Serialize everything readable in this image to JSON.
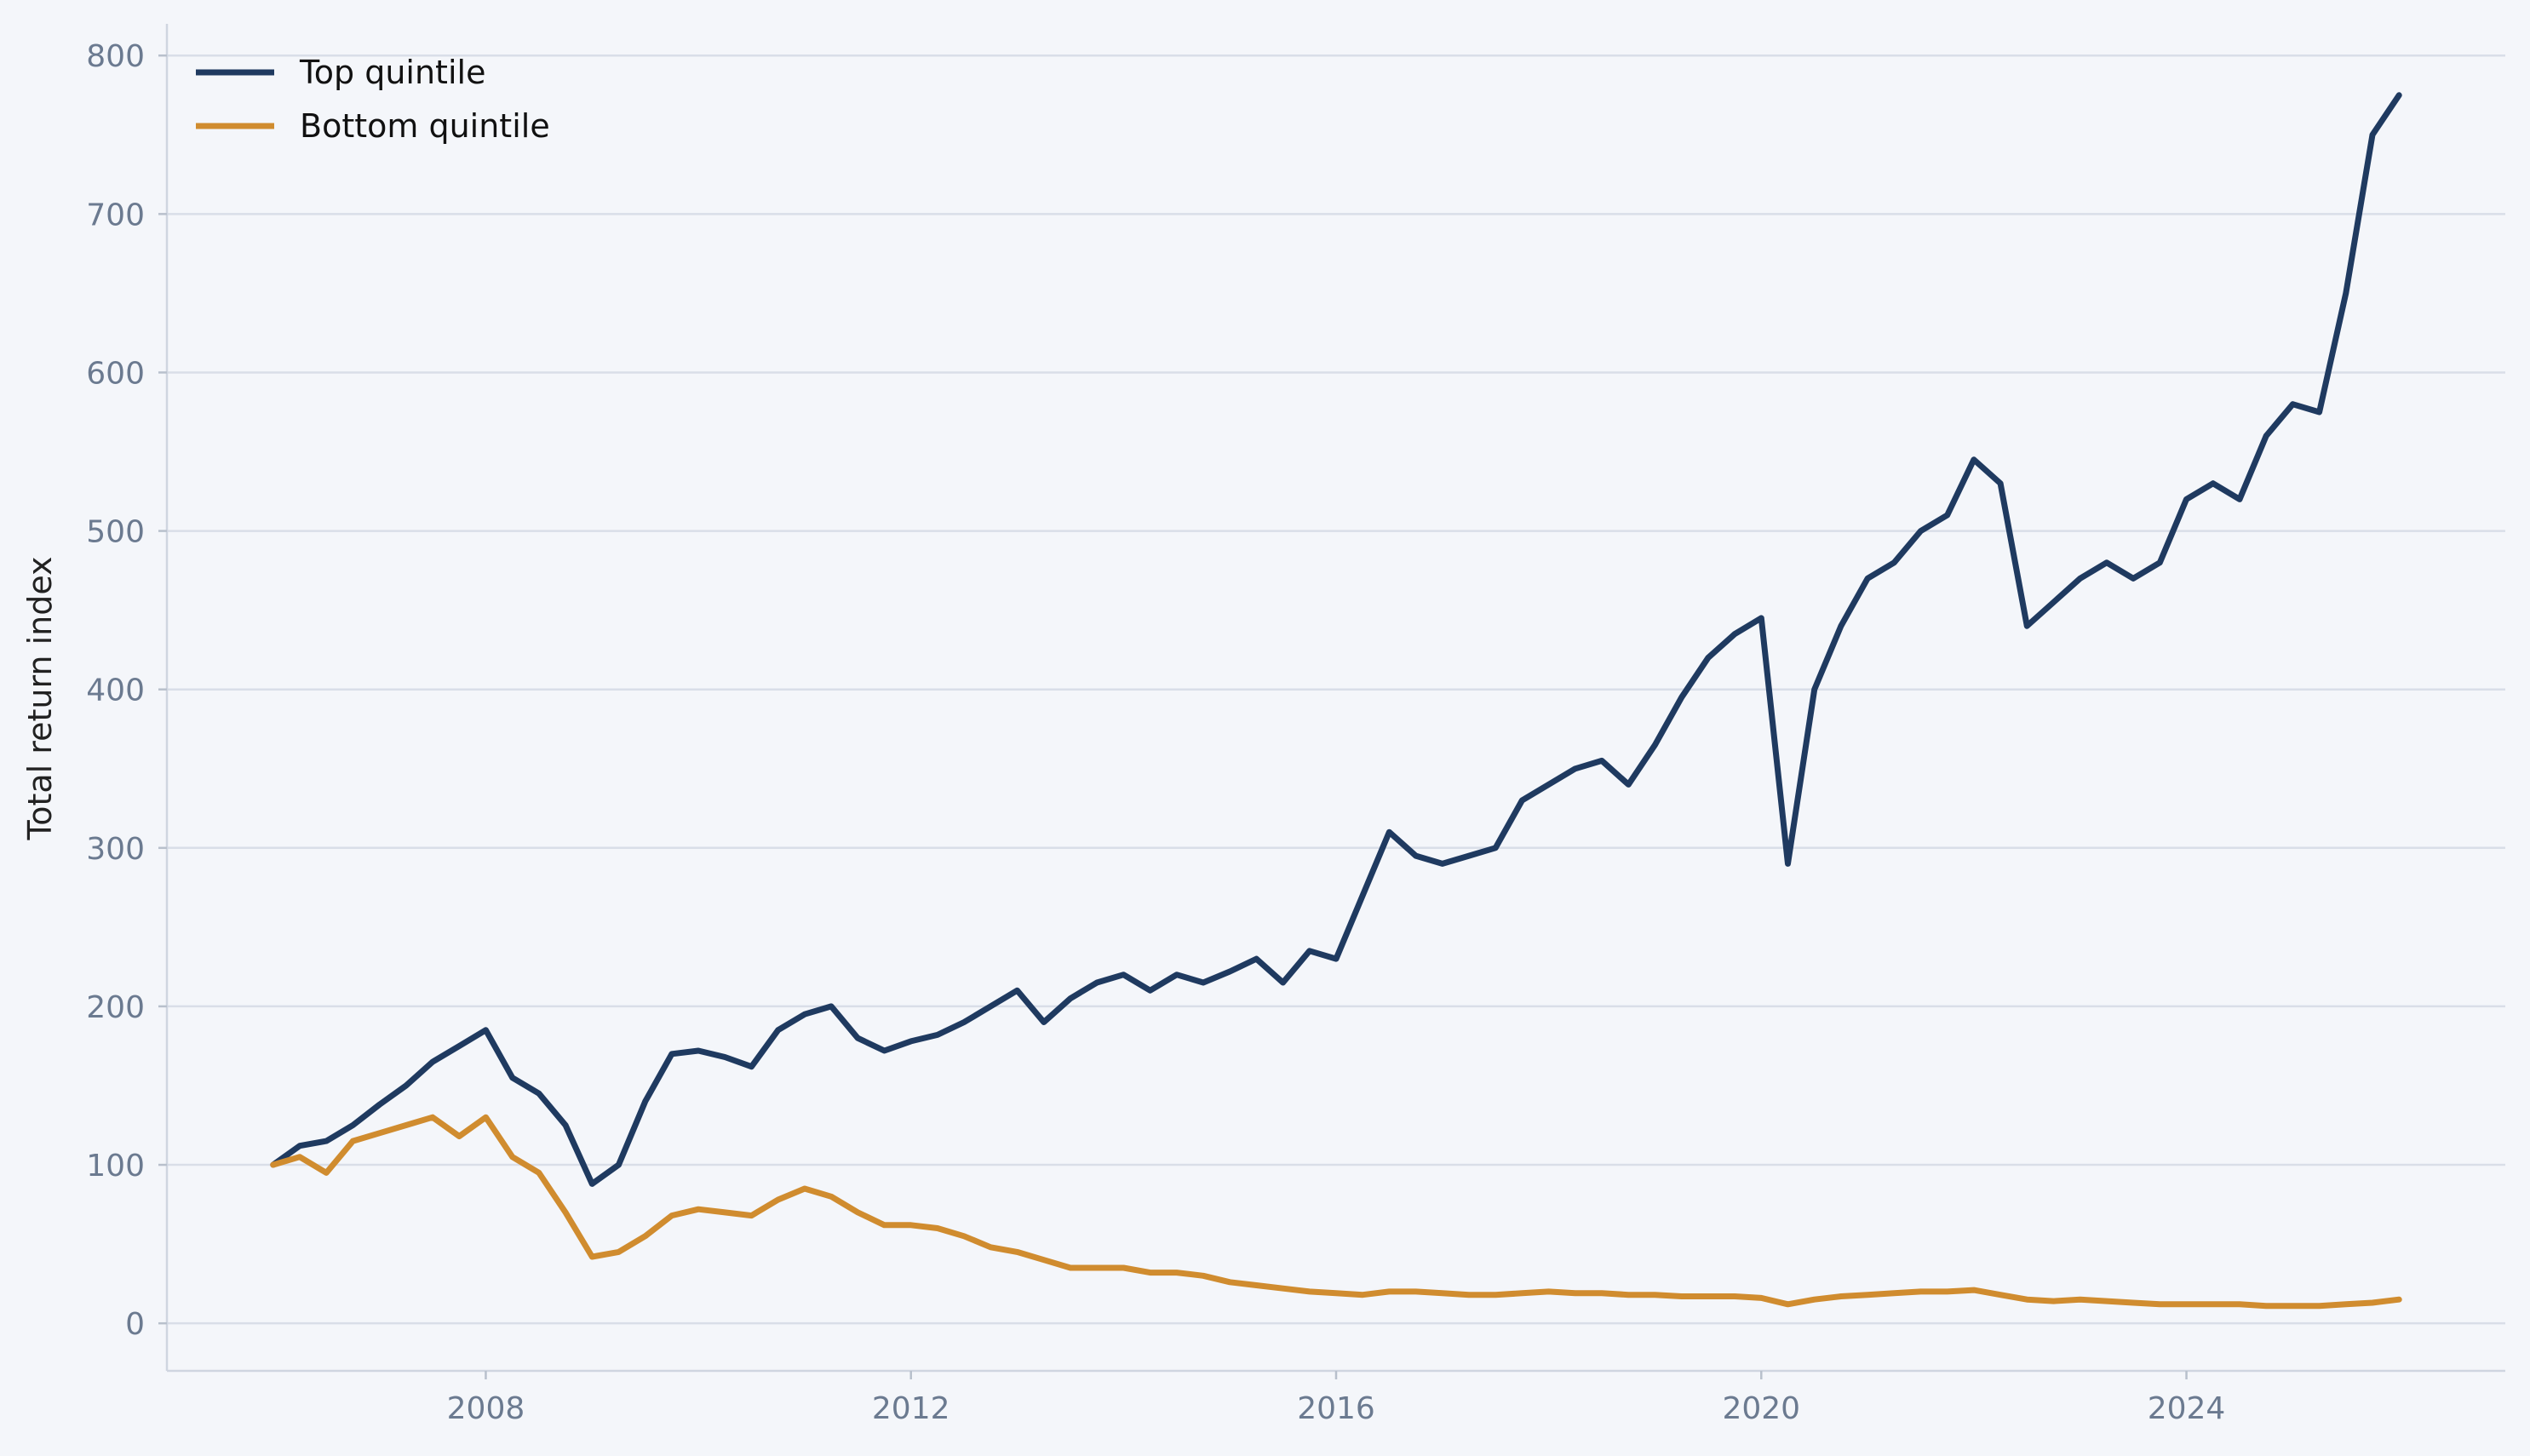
{
  "chart_data": {
    "type": "line",
    "title": "",
    "xlabel": "",
    "ylabel": "Total return index",
    "x_ticks": [
      "2008",
      "2012",
      "2016",
      "2020",
      "2024"
    ],
    "y_ticks": [
      "0",
      "100",
      "200",
      "300",
      "400",
      "500",
      "600",
      "700",
      "800"
    ],
    "xlim": [
      "2005-01",
      "2027-01"
    ],
    "ylim": [
      -30,
      820
    ],
    "grid": "horizontal",
    "legend_position": "top-left",
    "x": [
      "2006-01",
      "2006-04",
      "2006-07",
      "2006-10",
      "2007-01",
      "2007-04",
      "2007-07",
      "2007-10",
      "2008-01",
      "2008-04",
      "2008-07",
      "2008-10",
      "2009-01",
      "2009-04",
      "2009-07",
      "2009-10",
      "2010-01",
      "2010-04",
      "2010-07",
      "2010-10",
      "2011-01",
      "2011-04",
      "2011-07",
      "2011-10",
      "2012-01",
      "2012-04",
      "2012-07",
      "2012-10",
      "2013-01",
      "2013-04",
      "2013-07",
      "2013-10",
      "2014-01",
      "2014-04",
      "2014-07",
      "2014-10",
      "2015-01",
      "2015-04",
      "2015-07",
      "2015-10",
      "2016-01",
      "2016-04",
      "2016-07",
      "2016-10",
      "2017-01",
      "2017-04",
      "2017-07",
      "2017-10",
      "2018-01",
      "2018-04",
      "2018-07",
      "2018-10",
      "2019-01",
      "2019-04",
      "2019-07",
      "2019-10",
      "2020-01",
      "2020-04",
      "2020-07",
      "2020-10",
      "2021-01",
      "2021-04",
      "2021-07",
      "2021-10",
      "2022-01",
      "2022-04",
      "2022-07",
      "2022-10",
      "2023-01",
      "2023-04",
      "2023-07",
      "2023-10",
      "2024-01",
      "2024-04",
      "2024-07",
      "2024-10",
      "2025-01",
      "2025-04",
      "2025-07",
      "2025-10",
      "2026-01"
    ],
    "series": [
      {
        "name": "Top quintile",
        "color": "#1f3a60",
        "values": [
          100,
          112,
          115,
          125,
          138,
          150,
          165,
          175,
          185,
          155,
          145,
          125,
          88,
          100,
          140,
          170,
          172,
          168,
          162,
          185,
          195,
          200,
          180,
          172,
          178,
          182,
          190,
          200,
          210,
          190,
          205,
          215,
          220,
          210,
          220,
          215,
          222,
          230,
          215,
          235,
          230,
          270,
          310,
          295,
          290,
          295,
          300,
          330,
          340,
          350,
          355,
          340,
          365,
          395,
          420,
          435,
          445,
          290,
          400,
          440,
          470,
          480,
          500,
          510,
          545,
          530,
          440,
          455,
          470,
          480,
          470,
          480,
          520,
          530,
          520,
          560,
          580,
          575,
          650,
          750,
          775
        ]
      },
      {
        "name": "Bottom quintile",
        "color": "#d08c2f",
        "values": [
          100,
          105,
          95,
          115,
          120,
          125,
          130,
          118,
          130,
          105,
          95,
          70,
          42,
          45,
          55,
          68,
          72,
          70,
          68,
          78,
          85,
          80,
          70,
          62,
          62,
          60,
          55,
          48,
          45,
          40,
          35,
          35,
          35,
          32,
          32,
          30,
          26,
          24,
          22,
          20,
          19,
          18,
          20,
          20,
          19,
          18,
          18,
          19,
          20,
          19,
          19,
          18,
          18,
          17,
          17,
          17,
          16,
          12,
          15,
          17,
          18,
          19,
          20,
          20,
          21,
          18,
          15,
          14,
          15,
          14,
          13,
          12,
          12,
          12,
          12,
          11,
          11,
          11,
          12,
          13,
          15
        ]
      }
    ]
  }
}
